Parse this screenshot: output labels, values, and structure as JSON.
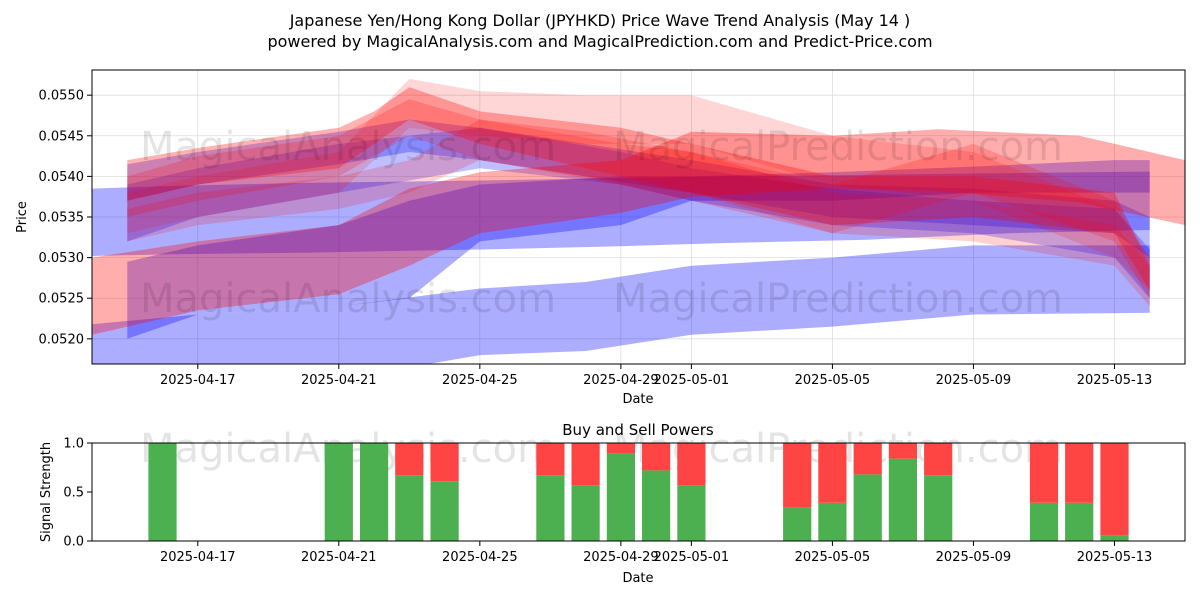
{
  "header": {
    "title": "Japanese Yen/Hong Kong Dollar (JPYHKD) Price Wave Trend Analysis (May 14 )",
    "subtitle": "powered by MagicalAnalysis.com and MagicalPrediction.com and Predict-Price.com"
  },
  "watermarks": [
    "MagicalAnalysis.com",
    "MagicalPrediction.com"
  ],
  "colors": {
    "red": "#ff0000",
    "blue": "#0000ff",
    "buy": "#4caf50",
    "sell": "#ff4444"
  },
  "chart_data": [
    {
      "type": "area",
      "xlabel": "Date",
      "ylabel": "Price",
      "xlim": [
        "2025-04-14",
        "2025-05-15"
      ],
      "ylim": [
        0.05169,
        0.05531
      ],
      "x_ticks": [
        "2025-04-17",
        "2025-04-21",
        "2025-04-25",
        "2025-04-29",
        "2025-05-01",
        "2025-05-05",
        "2025-05-09",
        "2025-05-13"
      ],
      "y_ticks": [
        "0.0520",
        "0.0525",
        "0.0530",
        "0.0535",
        "0.0540",
        "0.0545",
        "0.0550"
      ],
      "series": [
        {
          "color": "blue",
          "opacity": 0.32,
          "x": [
            "2025-04-14",
            "2025-04-16",
            "2025-04-20",
            "2025-04-25",
            "2025-04-29",
            "2025-05-02",
            "2025-05-06",
            "2025-05-10",
            "2025-05-14"
          ],
          "upper": [
            0.05385,
            0.05388,
            0.05392,
            0.05395,
            0.05398,
            0.054,
            0.05402,
            0.05404,
            0.05406
          ],
          "lower": [
            0.05302,
            0.05304,
            0.05306,
            0.0531,
            0.05314,
            0.05318,
            0.05322,
            0.0533,
            0.05334
          ]
        },
        {
          "color": "blue",
          "opacity": 0.32,
          "x": [
            "2025-04-14",
            "2025-04-17",
            "2025-04-21",
            "2025-04-25",
            "2025-04-28",
            "2025-05-01",
            "2025-05-05",
            "2025-05-09",
            "2025-05-14"
          ],
          "upper": [
            0.05218,
            0.0523,
            0.0524,
            0.05262,
            0.0527,
            0.0529,
            0.053,
            0.05315,
            0.05315
          ],
          "lower": [
            0.0513,
            0.0514,
            0.0515,
            0.0518,
            0.05185,
            0.05205,
            0.05215,
            0.0523,
            0.05232
          ]
        },
        {
          "color": "blue",
          "opacity": 0.32,
          "x": [
            "2025-04-15",
            "2025-04-17",
            "2025-04-21",
            "2025-04-23",
            "2025-04-25",
            "2025-04-29",
            "2025-05-01",
            "2025-05-05",
            "2025-05-09",
            "2025-05-13",
            "2025-05-14"
          ],
          "upper": [
            0.05295,
            0.05315,
            0.0534,
            0.0537,
            0.0539,
            0.054,
            0.054,
            0.05405,
            0.05412,
            0.0542,
            0.0542
          ],
          "lower": [
            0.052,
            0.0523,
            0.0524,
            0.0525,
            0.0532,
            0.0534,
            0.0537,
            0.0537,
            0.0538,
            0.0538,
            0.0538
          ]
        },
        {
          "color": "blue",
          "opacity": 0.28,
          "x": [
            "2025-04-15",
            "2025-04-17",
            "2025-04-21",
            "2025-04-23",
            "2025-04-25",
            "2025-04-28",
            "2025-05-01",
            "2025-05-05",
            "2025-05-09",
            "2025-05-13",
            "2025-05-14"
          ],
          "upper": [
            0.05415,
            0.0543,
            0.05455,
            0.0547,
            0.0546,
            0.0544,
            0.0542,
            0.0539,
            0.05385,
            0.0537,
            0.0535
          ],
          "lower": [
            0.0537,
            0.0539,
            0.05415,
            0.0543,
            0.0542,
            0.054,
            0.0538,
            0.0535,
            0.0534,
            0.0533,
            0.053
          ]
        },
        {
          "color": "blue",
          "opacity": 0.25,
          "x": [
            "2025-04-15",
            "2025-04-17",
            "2025-04-21",
            "2025-04-25",
            "2025-04-29",
            "2025-05-01",
            "2025-05-05",
            "2025-05-09",
            "2025-05-13",
            "2025-05-14"
          ],
          "upper": [
            0.0539,
            0.0541,
            0.0544,
            0.0546,
            0.0543,
            0.0541,
            0.05385,
            0.0537,
            0.0536,
            0.0531
          ],
          "lower": [
            0.0532,
            0.0535,
            0.0538,
            0.0541,
            0.0539,
            0.0537,
            0.0534,
            0.0533,
            0.053,
            0.0525
          ]
        },
        {
          "color": "red",
          "opacity": 0.32,
          "x": [
            "2025-04-14",
            "2025-04-17",
            "2025-04-21",
            "2025-04-23",
            "2025-04-25",
            "2025-04-29",
            "2025-05-01",
            "2025-05-05",
            "2025-05-08",
            "2025-05-12",
            "2025-05-15"
          ],
          "upper": [
            0.053,
            0.0532,
            0.0534,
            0.05385,
            0.05405,
            0.0542,
            0.05455,
            0.0545,
            0.05458,
            0.0545,
            0.0542
          ],
          "lower": [
            0.05205,
            0.05235,
            0.05255,
            0.0529,
            0.0533,
            0.05355,
            0.05375,
            0.05385,
            0.05382,
            0.05368,
            0.0534
          ]
        },
        {
          "color": "red",
          "opacity": 0.3,
          "x": [
            "2025-04-15",
            "2025-04-17",
            "2025-04-21",
            "2025-04-22",
            "2025-04-23",
            "2025-04-25",
            "2025-04-29",
            "2025-05-01",
            "2025-05-05",
            "2025-05-09",
            "2025-05-13",
            "2025-05-14"
          ],
          "upper": [
            0.0542,
            0.05435,
            0.0546,
            0.0548,
            0.0551,
            0.0548,
            0.0546,
            0.0544,
            0.054,
            0.054,
            0.0538,
            0.0529
          ],
          "lower": [
            0.0537,
            0.0539,
            0.0541,
            0.0544,
            0.0547,
            0.0544,
            0.054,
            0.0538,
            0.0534,
            0.0535,
            0.0533,
            0.0526
          ]
        },
        {
          "color": "red",
          "opacity": 0.2,
          "x": [
            "2025-04-15",
            "2025-04-17",
            "2025-04-21",
            "2025-04-23",
            "2025-04-25",
            "2025-04-28",
            "2025-05-01",
            "2025-05-05",
            "2025-05-09",
            "2025-05-13",
            "2025-05-14"
          ],
          "upper": [
            0.054,
            0.05425,
            0.0545,
            0.05495,
            0.0547,
            0.05455,
            0.0543,
            0.0539,
            0.0544,
            0.0537,
            0.053
          ],
          "lower": [
            0.0535,
            0.0537,
            0.054,
            0.0545,
            0.0542,
            0.054,
            0.0537,
            0.0533,
            0.0538,
            0.0532,
            0.0525
          ]
        },
        {
          "color": "red",
          "opacity": 0.16,
          "x": [
            "2025-04-15",
            "2025-04-17",
            "2025-04-21",
            "2025-04-23",
            "2025-04-25",
            "2025-04-28",
            "2025-05-01",
            "2025-05-05",
            "2025-05-09",
            "2025-05-13",
            "2025-05-14"
          ],
          "upper": [
            0.0538,
            0.054,
            0.0543,
            0.0552,
            0.05505,
            0.055,
            0.055,
            0.0545,
            0.0543,
            0.0536,
            0.053
          ],
          "lower": [
            0.0533,
            0.0535,
            0.0538,
            0.0546,
            0.0545,
            0.0544,
            0.0544,
            0.0539,
            0.0537,
            0.053,
            0.0526
          ]
        },
        {
          "color": "red",
          "opacity": 0.18,
          "x": [
            "2025-04-15",
            "2025-04-17",
            "2025-04-21",
            "2025-04-23",
            "2025-04-25",
            "2025-04-29",
            "2025-05-01",
            "2025-05-05",
            "2025-05-09",
            "2025-05-13",
            "2025-05-14"
          ],
          "upper": [
            0.0536,
            0.0538,
            0.054,
            0.0542,
            0.0547,
            0.0544,
            0.0543,
            0.0538,
            0.0537,
            0.0534,
            0.0529
          ],
          "lower": [
            0.0532,
            0.0534,
            0.0536,
            0.0538,
            0.0542,
            0.0539,
            0.0538,
            0.0533,
            0.0532,
            0.0529,
            0.0524
          ]
        }
      ]
    },
    {
      "type": "bar",
      "title": "Buy and Sell Powers",
      "xlabel": "Date",
      "ylabel": "Signal Strength",
      "xlim": [
        "2025-04-14",
        "2025-05-15"
      ],
      "ylim": [
        0,
        1
      ],
      "x_ticks": [
        "2025-04-17",
        "2025-04-21",
        "2025-04-25",
        "2025-04-29",
        "2025-05-01",
        "2025-05-05",
        "2025-05-09",
        "2025-05-13"
      ],
      "y_ticks": [
        "0.0",
        "0.5",
        "1.0"
      ],
      "series": [
        {
          "name": "buy"
        },
        {
          "name": "sell"
        }
      ],
      "bars": [
        {
          "date": "2025-04-16",
          "buy": 1.0
        },
        {
          "date": "2025-04-21",
          "buy": 1.0
        },
        {
          "date": "2025-04-22",
          "buy": 1.0
        },
        {
          "date": "2025-04-23",
          "buy": 0.67
        },
        {
          "date": "2025-04-24",
          "buy": 0.61
        },
        {
          "date": "2025-04-27",
          "buy": 0.67
        },
        {
          "date": "2025-04-28",
          "buy": 0.57
        },
        {
          "date": "2025-04-29",
          "buy": 0.89
        },
        {
          "date": "2025-04-30",
          "buy": 0.72
        },
        {
          "date": "2025-05-01",
          "buy": 0.57
        },
        {
          "date": "2025-05-04",
          "buy": 0.34
        },
        {
          "date": "2025-05-05",
          "buy": 0.39
        },
        {
          "date": "2025-05-06",
          "buy": 0.68
        },
        {
          "date": "2025-05-07",
          "buy": 0.84
        },
        {
          "date": "2025-05-08",
          "buy": 0.67
        },
        {
          "date": "2025-05-11",
          "buy": 0.39
        },
        {
          "date": "2025-05-12",
          "buy": 0.39
        },
        {
          "date": "2025-05-13",
          "buy": 0.06
        }
      ]
    }
  ]
}
